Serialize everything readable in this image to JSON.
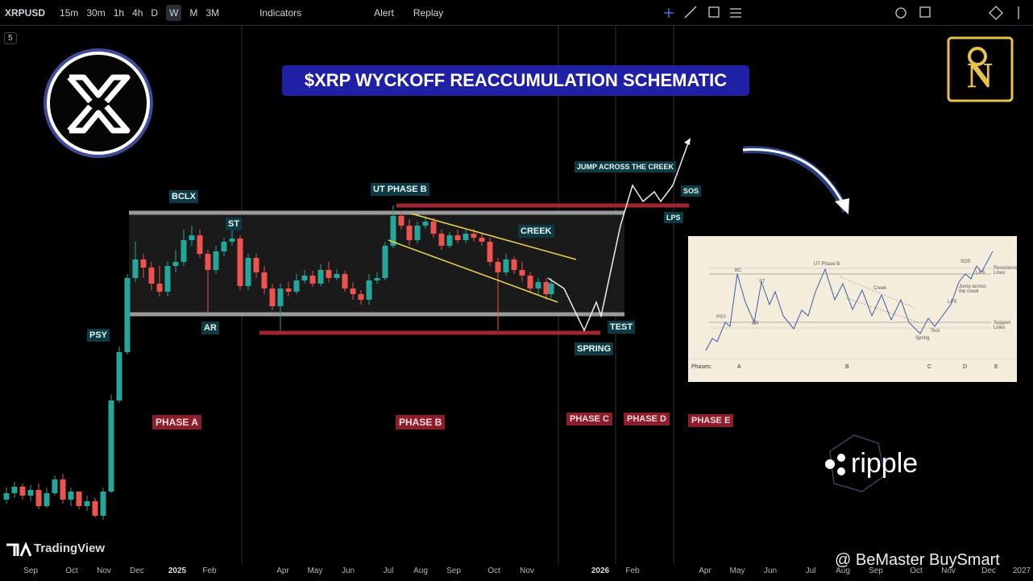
{
  "toolbar": {
    "symbol": "XRPUSD",
    "intervals": [
      "15m",
      "30m",
      "1h",
      "4h",
      "D",
      "W",
      "M",
      "3M"
    ],
    "buttons": [
      "Indicators",
      "Alert",
      "Replay"
    ]
  },
  "badge": "5",
  "title": "$XRP WYCKOFF REACCUMULATION SCHEMATIC",
  "annotations": [
    "BCLX",
    "ST",
    "AR",
    "PSY",
    "UT PHASE B",
    "CREEK",
    "JUMP ACROSS THE CREEK",
    "SOS",
    "LPS",
    "TEST",
    "SPRING",
    "PHASE A",
    "PHASE B",
    "PHASE C",
    "PHASE D",
    "PHASE E"
  ],
  "inset": {
    "labels": [
      "BC",
      "ST",
      "AR",
      "PSY",
      "UT Phase B",
      "Creek",
      "SOS",
      "LPS",
      "Jump across the creek",
      "LPS",
      "Test",
      "Spring",
      "Resistance Lines",
      "Support Lines"
    ],
    "phases_label": "Phases:",
    "phases": [
      "A",
      "B",
      "C",
      "D",
      "E"
    ]
  },
  "x_axis": [
    "Sep",
    "Oct",
    "Nov",
    "Dec",
    "2025",
    "Feb",
    "Apr",
    "May",
    "Jun",
    "Jul",
    "Aug",
    "Sep",
    "Oct",
    "Nov",
    "2026",
    "Feb",
    "Apr",
    "May",
    "Jun",
    "Jul",
    "Aug",
    "Sep",
    "Oct",
    "Nov",
    "Dec",
    "2027"
  ],
  "branding": {
    "tradingview": "TradingView",
    "ripple": "ripple",
    "watermark": "@ BeMaster BuySmart"
  }
}
